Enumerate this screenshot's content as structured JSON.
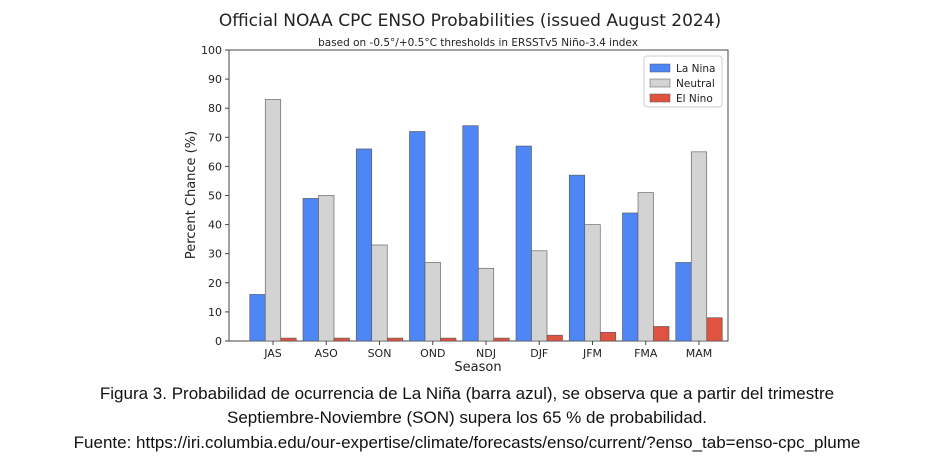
{
  "chart_data": {
    "type": "bar",
    "title": "Official NOAA CPC ENSO Probabilities (issued August 2024)",
    "subtitle": "based on -0.5°/+0.5°C thresholds in ERSSTv5 Niño-3.4 index",
    "xlabel": "Season",
    "ylabel": "Percent Chance (%)",
    "ylim": [
      0,
      100
    ],
    "yticks": [
      0,
      10,
      20,
      30,
      40,
      50,
      60,
      70,
      80,
      90,
      100
    ],
    "grid": false,
    "legend_position": "top-right",
    "categories": [
      "JAS",
      "ASO",
      "SON",
      "OND",
      "NDJ",
      "DJF",
      "JFM",
      "FMA",
      "MAM"
    ],
    "series": [
      {
        "name": "La Nina",
        "color": "#4f86f5",
        "values": [
          16,
          49,
          66,
          72,
          74,
          67,
          57,
          44,
          27
        ]
      },
      {
        "name": "Neutral",
        "color": "#d3d3d3",
        "values": [
          83,
          50,
          33,
          27,
          25,
          31,
          40,
          51,
          65
        ]
      },
      {
        "name": "El Nino",
        "color": "#e05340",
        "values": [
          1,
          1,
          1,
          1,
          1,
          2,
          3,
          5,
          8
        ]
      }
    ]
  },
  "caption": {
    "line1": "Figura 3. Probabilidad de ocurrencia de La Niña (barra azul), se observa que a partir del trimestre",
    "line2": "Septiembre-Noviembre (SON) supera los 65 % de probabilidad.",
    "line3": "Fuente: https://iri.columbia.edu/our-expertise/climate/forecasts/enso/current/?enso_tab=enso-cpc_plume"
  }
}
